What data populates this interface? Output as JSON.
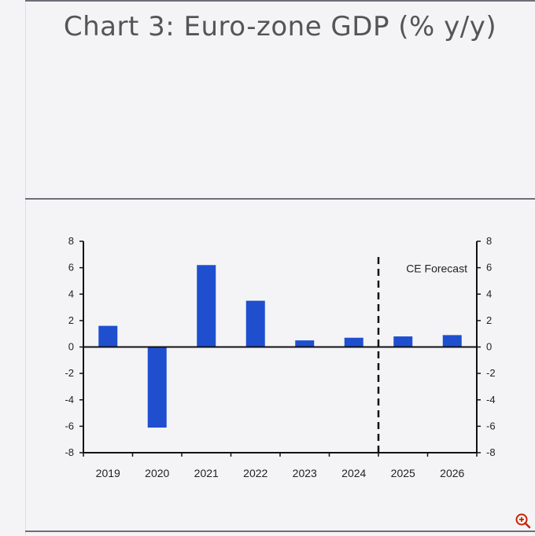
{
  "page": {
    "title": "Chart 3: Euro-zone GDP (% y/y)",
    "zoom_icon": "zoom-in-icon"
  },
  "chart_data": {
    "type": "bar",
    "title": "Chart 3: Euro-zone GDP (% y/y)",
    "xlabel": "",
    "ylabel": "",
    "categories": [
      "2019",
      "2020",
      "2021",
      "2022",
      "2023",
      "2024",
      "2025",
      "2026"
    ],
    "values": [
      1.6,
      -6.1,
      6.2,
      3.5,
      0.5,
      0.7,
      0.8,
      0.9
    ],
    "ylim": [
      -8,
      8
    ],
    "yticks": [
      "8",
      "6",
      "4",
      "2",
      "0",
      "-2",
      "-4",
      "-6",
      "-8"
    ],
    "forecast_label": "CE Forecast",
    "forecast_start_after": "2024",
    "grid": false,
    "legend": "none",
    "colors": {
      "bar": "#1f4fcf",
      "axis": "#111111"
    }
  }
}
